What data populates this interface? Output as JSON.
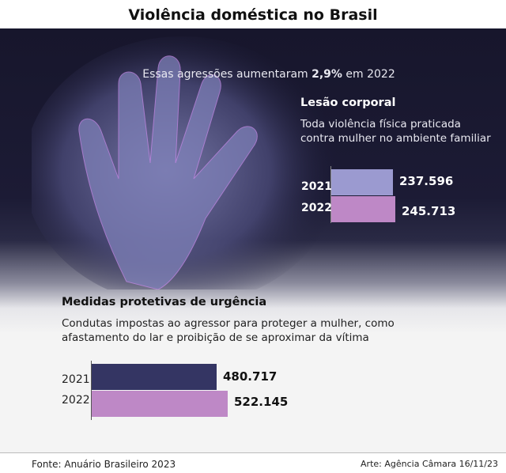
{
  "title": "Violência doméstica no Brasil",
  "subtitle_pre": "Essas agressões aumentaram ",
  "subtitle_bold": "2,9%",
  "subtitle_post": " em 2022",
  "chart_data": [
    {
      "type": "bar",
      "orientation": "horizontal",
      "title": "Lesão corporal",
      "subtitle": "Toda violência física praticada contra mulher no ambiente familiar",
      "categories": [
        "2021",
        "2022"
      ],
      "values": [
        237596,
        245713
      ],
      "value_labels": [
        "237.596",
        "245.713"
      ],
      "colors": [
        "#9b9ad0",
        "#be88c6"
      ]
    },
    {
      "type": "bar",
      "orientation": "horizontal",
      "title": "Medidas protetivas de urgência",
      "subtitle": "Condutas impostas ao agressor para proteger a mulher, como afastamento do lar e proibição de se aproximar da vítima",
      "categories": [
        "2021",
        "2022"
      ],
      "values": [
        480717,
        522145
      ],
      "value_labels": [
        "480.717",
        "522.145"
      ],
      "colors": [
        "#343563",
        "#be88c6"
      ]
    }
  ],
  "footer": {
    "source": "Fonte: Anuário Brasileiro 2023",
    "credit": "Arte: Agência Câmara 16/11/23"
  }
}
